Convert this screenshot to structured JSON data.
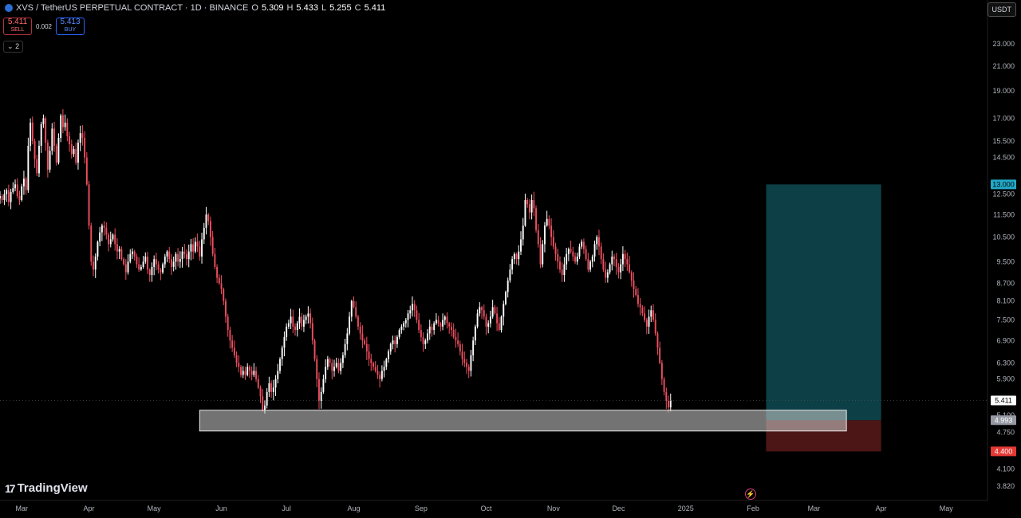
{
  "header": {
    "symbol": "XVS / TetherUS PERPETUAL CONTRACT · 1D · BINANCE",
    "o_label": "O",
    "o_value": "5.309",
    "h_label": "H",
    "h_value": "5.433",
    "l_label": "L",
    "l_value": "5.255",
    "c_label": "C",
    "c_value": "5.411"
  },
  "trade": {
    "sell_price": "5.411",
    "sell_label": "SELL",
    "spread": "0.002",
    "buy_price": "5.413",
    "buy_label": "BUY"
  },
  "collapse_label": "2",
  "currency_button": "USDT",
  "brand": "TradingView",
  "colors": {
    "up": "#ffffff",
    "down": "#ef4f5f",
    "profit_zone": "#0e4a52",
    "loss_zone": "#5a1a1a",
    "current_price_tag": "#ffffff",
    "target_tag": "#22a8c7",
    "stop_tag": "#e53935",
    "entry_tag": "#9598a1"
  },
  "chart_data": {
    "type": "candlestick",
    "y_scale": "log",
    "ylim": [
      3.7,
      25.5
    ],
    "x_range": [
      "2024-02-20",
      "2025-05-20"
    ],
    "price_ticks": [
      "23.000",
      "21.000",
      "19.000",
      "17.000",
      "15.500",
      "14.500",
      "12.500",
      "11.500",
      "10.500",
      "9.500",
      "8.700",
      "8.100",
      "7.500",
      "6.900",
      "6.300",
      "5.900",
      "5.100",
      "4.750",
      "4.100",
      "3.820"
    ],
    "time_ticks": [
      {
        "label": "Mar",
        "date": "2024-03-01"
      },
      {
        "label": "Apr",
        "date": "2024-04-01"
      },
      {
        "label": "May",
        "date": "2024-05-01"
      },
      {
        "label": "Jun",
        "date": "2024-06-01"
      },
      {
        "label": "Jul",
        "date": "2024-07-01"
      },
      {
        "label": "Aug",
        "date": "2024-08-01"
      },
      {
        "label": "Sep",
        "date": "2024-09-01"
      },
      {
        "label": "Oct",
        "date": "2024-10-01"
      },
      {
        "label": "Nov",
        "date": "2024-11-01"
      },
      {
        "label": "Dec",
        "date": "2024-12-01"
      },
      {
        "label": "2025",
        "date": "2025-01-01"
      },
      {
        "label": "Feb",
        "date": "2025-02-01"
      },
      {
        "label": "Mar",
        "date": "2025-03-01"
      },
      {
        "label": "Apr",
        "date": "2025-04-01"
      },
      {
        "label": "May",
        "date": "2025-05-01"
      }
    ],
    "close_series": {
      "start": "2024-02-20",
      "interval": "1D",
      "closes": [
        12.4,
        12.2,
        12.5,
        12.7,
        12.1,
        12.6,
        12.8,
        13.0,
        12.4,
        12.2,
        12.9,
        13.3,
        12.7,
        15.2,
        16.7,
        15.5,
        14.4,
        13.6,
        15.2,
        16.6,
        17.0,
        15.4,
        13.8,
        14.9,
        16.3,
        15.2,
        14.2,
        15.7,
        17.2,
        16.4,
        16.7,
        15.8,
        15.3,
        14.7,
        15.0,
        14.2,
        15.4,
        16.0,
        15.7,
        14.5,
        13.0,
        11.0,
        9.5,
        9.2,
        9.7,
        10.3,
        10.7,
        11.0,
        10.9,
        10.6,
        10.2,
        10.4,
        10.6,
        10.2,
        9.9,
        10.0,
        9.6,
        9.4,
        9.1,
        9.5,
        9.8,
        9.9,
        9.7,
        9.4,
        9.2,
        9.3,
        9.5,
        9.7,
        9.2,
        9.0,
        9.3,
        9.6,
        9.4,
        9.2,
        9.1,
        9.4,
        9.7,
        9.9,
        9.6,
        9.3,
        9.5,
        9.8,
        9.5,
        9.6,
        9.9,
        9.8,
        9.6,
        9.9,
        10.2,
        9.9,
        10.3,
        10.1,
        9.7,
        10.4,
        10.9,
        11.5,
        11.2,
        10.5,
        9.8,
        9.3,
        8.9,
        8.7,
        8.5,
        8.1,
        7.6,
        7.2,
        6.9,
        6.7,
        6.5,
        6.3,
        6.2,
        6.0,
        6.1,
        6.0,
        6.2,
        6.1,
        6.0,
        6.1,
        5.9,
        5.7,
        5.5,
        5.2,
        5.3,
        5.6,
        5.8,
        5.6,
        5.7,
        5.9,
        6.1,
        6.4,
        6.7,
        7.0,
        7.3,
        7.4,
        7.6,
        7.3,
        7.2,
        7.4,
        7.6,
        7.3,
        7.5,
        7.6,
        7.7,
        7.4,
        6.9,
        6.4,
        5.9,
        5.4,
        5.6,
        5.9,
        6.2,
        6.4,
        6.3,
        6.1,
        6.2,
        6.3,
        6.1,
        6.3,
        6.5,
        6.8,
        7.1,
        7.6,
        8.1,
        7.9,
        7.6,
        7.3,
        7.1,
        6.9,
        6.8,
        6.6,
        6.4,
        6.3,
        6.2,
        6.1,
        6.0,
        5.9,
        6.1,
        6.2,
        6.4,
        6.6,
        6.8,
        6.9,
        6.8,
        7.0,
        7.2,
        7.3,
        7.4,
        7.5,
        7.7,
        7.8,
        8.0,
        7.8,
        7.5,
        7.2,
        7.0,
        6.8,
        6.9,
        7.1,
        7.3,
        7.2,
        7.4,
        7.5,
        7.4,
        7.3,
        7.5,
        7.6,
        7.4,
        7.3,
        7.2,
        7.0,
        6.9,
        6.8,
        6.6,
        6.4,
        6.3,
        6.2,
        6.1,
        6.5,
        6.9,
        7.3,
        7.7,
        7.9,
        7.8,
        7.6,
        7.3,
        7.4,
        7.6,
        7.9,
        7.7,
        7.4,
        7.2,
        7.6,
        8.0,
        8.4,
        8.8,
        9.2,
        9.6,
        9.8,
        9.6,
        9.9,
        10.4,
        11.0,
        12.2,
        12.0,
        11.6,
        12.2,
        11.8,
        10.8,
        10.2,
        9.4,
        10.2,
        11.0,
        11.3,
        11.0,
        10.5,
        10.1,
        9.8,
        9.5,
        9.2,
        9.0,
        9.4,
        9.8,
        10.0,
        9.9,
        9.7,
        9.5,
        9.7,
        10.1,
        10.3,
        10.0,
        9.6,
        9.2,
        9.5,
        9.7,
        10.2,
        10.5,
        10.1,
        9.6,
        9.2,
        8.9,
        9.1,
        9.4,
        9.7,
        9.6,
        9.3,
        9.1,
        9.4,
        9.8,
        9.6,
        9.4,
        9.1,
        8.8,
        8.5,
        8.3,
        8.0,
        7.9,
        7.7,
        7.5,
        7.3,
        7.6,
        7.8,
        7.5,
        7.1,
        6.7,
        6.3,
        5.9,
        5.6,
        5.4,
        5.26,
        5.411
      ]
    },
    "annotations": {
      "support_zone": {
        "label": "",
        "start": "2024-05-22",
        "end": "2025-03-16",
        "top": 5.2,
        "bottom": 4.78
      },
      "long_position": {
        "start": "2025-02-07",
        "end": "2025-04-01",
        "entry": 4.993,
        "target": 13.0,
        "stop": 4.4
      },
      "price_tags": {
        "current": "5.411",
        "target": "13.000",
        "entry": "4.993",
        "stop": "4.400"
      }
    }
  }
}
